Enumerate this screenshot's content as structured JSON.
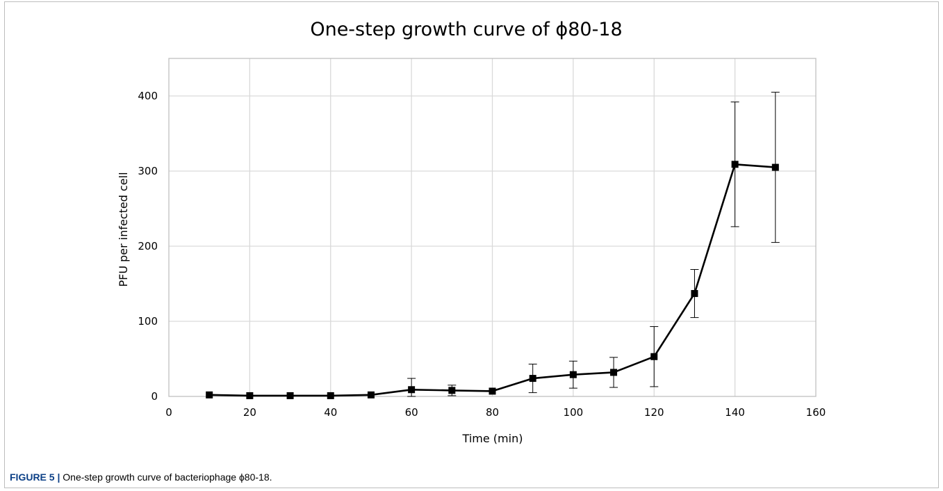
{
  "chart_data": {
    "type": "line",
    "title": "One-step growth curve of ϕ80-18",
    "xlabel": "Time (min)",
    "ylabel": "PFU per infected cell",
    "xlim": [
      0,
      160
    ],
    "ylim": [
      0,
      450
    ],
    "xticks": [
      0,
      20,
      40,
      60,
      80,
      100,
      120,
      140,
      160
    ],
    "yticks": [
      0,
      100,
      200,
      300,
      400
    ],
    "grid": true,
    "legend": "none",
    "colors": {
      "line": "#000000",
      "grid": "#d9d9d9",
      "axis": "#bfbfbf"
    },
    "series": [
      {
        "x": [
          10,
          20,
          30,
          40,
          50,
          60,
          70,
          80,
          90,
          100,
          110,
          120,
          130,
          140,
          150
        ],
        "y": [
          2,
          1,
          1,
          1,
          2,
          9,
          8,
          7,
          24,
          29,
          32,
          53,
          137,
          309,
          305
        ],
        "error": [
          0,
          0,
          0,
          0,
          0,
          15,
          7,
          0,
          19,
          18,
          20,
          40,
          32,
          83,
          100
        ]
      }
    ]
  },
  "caption": {
    "label": "FIGURE 5 |",
    "text": " One-step growth curve of bacteriophage ϕ80-18."
  }
}
